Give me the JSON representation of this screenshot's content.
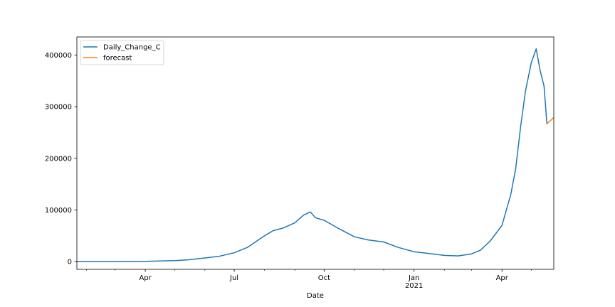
{
  "chart_data": {
    "type": "line",
    "title": "",
    "xlabel": "Date",
    "ylabel": "",
    "x_range": [
      "2020-01-22",
      "2021-05-24"
    ],
    "ylim": [
      -15000,
      435000
    ],
    "y_ticks": [
      0,
      100000,
      200000,
      300000,
      400000
    ],
    "y_tick_labels": [
      "0",
      "100000",
      "200000",
      "300000",
      "400000"
    ],
    "x_ticks": [
      {
        "date": "2020-04-01",
        "label": "Apr",
        "sublabel": ""
      },
      {
        "date": "2020-07-01",
        "label": "Jul",
        "sublabel": ""
      },
      {
        "date": "2020-10-01",
        "label": "Oct",
        "sublabel": ""
      },
      {
        "date": "2021-01-01",
        "label": "Jan",
        "sublabel": "2021"
      },
      {
        "date": "2021-04-01",
        "label": "Apr",
        "sublabel": ""
      }
    ],
    "grid": false,
    "legend_position": "top-left",
    "series": [
      {
        "name": "Daily_Change_C",
        "color": "#1f77b4",
        "points": [
          [
            "2020-01-22",
            0
          ],
          [
            "2020-03-01",
            0
          ],
          [
            "2020-04-01",
            500
          ],
          [
            "2020-05-01",
            1800
          ],
          [
            "2020-05-15",
            3500
          ],
          [
            "2020-06-01",
            7000
          ],
          [
            "2020-06-15",
            10000
          ],
          [
            "2020-07-01",
            17000
          ],
          [
            "2020-07-15",
            28000
          ],
          [
            "2020-08-01",
            50000
          ],
          [
            "2020-08-10",
            60000
          ],
          [
            "2020-08-20",
            65000
          ],
          [
            "2020-09-01",
            75000
          ],
          [
            "2020-09-10",
            90000
          ],
          [
            "2020-09-17",
            96000
          ],
          [
            "2020-09-22",
            85000
          ],
          [
            "2020-10-01",
            80000
          ],
          [
            "2020-10-15",
            65000
          ],
          [
            "2020-11-01",
            48000
          ],
          [
            "2020-11-15",
            42000
          ],
          [
            "2020-12-01",
            38000
          ],
          [
            "2020-12-15",
            28000
          ],
          [
            "2021-01-01",
            19000
          ],
          [
            "2021-01-15",
            16000
          ],
          [
            "2021-02-01",
            12000
          ],
          [
            "2021-02-15",
            11000
          ],
          [
            "2021-03-01",
            15000
          ],
          [
            "2021-03-10",
            22000
          ],
          [
            "2021-03-20",
            40000
          ],
          [
            "2021-04-01",
            70000
          ],
          [
            "2021-04-10",
            130000
          ],
          [
            "2021-04-15",
            180000
          ],
          [
            "2021-04-20",
            260000
          ],
          [
            "2021-04-25",
            330000
          ],
          [
            "2021-05-01",
            385000
          ],
          [
            "2021-05-06",
            412000
          ],
          [
            "2021-05-10",
            370000
          ],
          [
            "2021-05-14",
            340000
          ],
          [
            "2021-05-17",
            266000
          ]
        ]
      },
      {
        "name": "forecast",
        "color": "#ff7f0e",
        "points": [
          [
            "2021-05-17",
            267000
          ],
          [
            "2021-05-24",
            279000
          ]
        ]
      }
    ]
  }
}
